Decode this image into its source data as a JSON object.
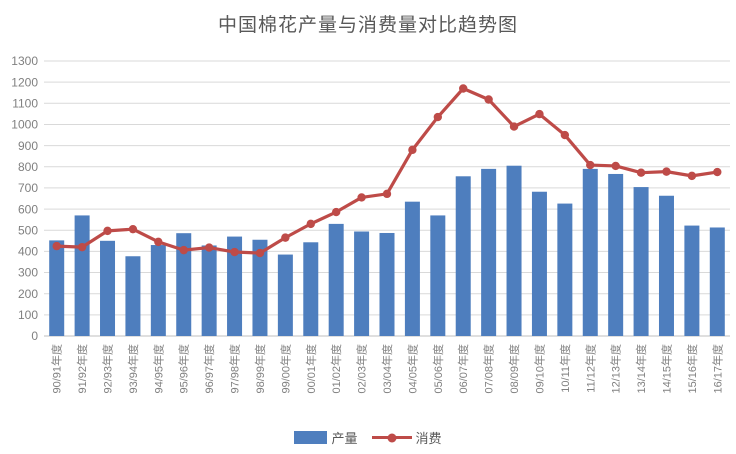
{
  "chart_data": {
    "type": "combo-bar-line",
    "title": "中国棉花产量与消费量对比趋势图",
    "categories": [
      "90/91年度",
      "91/92年度",
      "92/93年度",
      "93/94年度",
      "94/95年度",
      "95/96年度",
      "96/97年度",
      "97/98年度",
      "98/99年度",
      "99/00年度",
      "00/01年度",
      "01/02年度",
      "02/03年度",
      "03/04年度",
      "04/05年度",
      "05/06年度",
      "06/07年度",
      "07/08年度",
      "08/09年度",
      "09/10年度",
      "10/11年度",
      "11/12年度",
      "12/13年度",
      "13/14年度",
      "14/15年度",
      "15/16年度",
      "16/17年度"
    ],
    "series": [
      {
        "name": "产量",
        "type": "bar",
        "color": "#4E7EBE",
        "values": [
          452,
          570,
          450,
          377,
          430,
          486,
          428,
          470,
          455,
          385,
          443,
          530,
          494,
          487,
          635,
          570,
          755,
          790,
          805,
          682,
          626,
          790,
          766,
          704,
          663,
          522,
          513
        ]
      },
      {
        "name": "消费",
        "type": "line",
        "color": "#BE4B48",
        "values": [
          425,
          420,
          497,
          505,
          445,
          406,
          418,
          397,
          392,
          465,
          530,
          586,
          655,
          672,
          880,
          1035,
          1170,
          1118,
          990,
          1049,
          950,
          808,
          804,
          772,
          777,
          757,
          775
        ]
      }
    ],
    "xlabel": "",
    "ylabel": "",
    "ylim": [
      0,
      1300
    ],
    "ytick_step": 100,
    "grid": true,
    "legend_position": "bottom"
  },
  "colors": {
    "grid_line": "#D9D9D9",
    "axis_line": "#BFBFBF",
    "axis_text": "#808080",
    "title_text": "#595959"
  }
}
